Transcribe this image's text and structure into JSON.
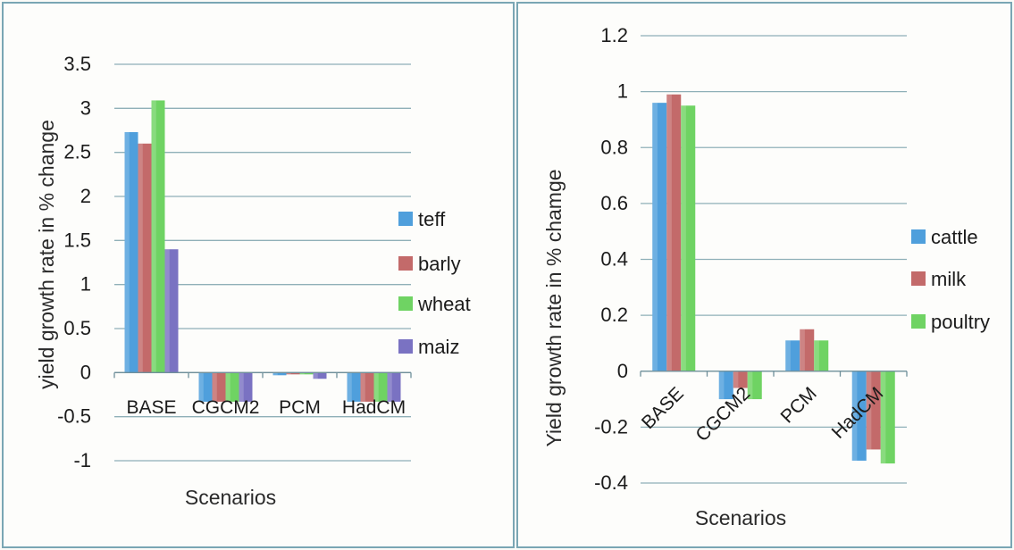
{
  "chart_data": [
    {
      "type": "bar",
      "categories": [
        "BASE",
        "CGCM2",
        "PCM",
        "HadCM"
      ],
      "series": [
        {
          "name": "teff",
          "color": "#4f9fdc",
          "values": [
            2.73,
            -0.33,
            -0.03,
            -0.33
          ]
        },
        {
          "name": "barly",
          "color": "#c36a6a",
          "values": [
            2.6,
            -0.33,
            -0.02,
            -0.33
          ]
        },
        {
          "name": "wheat",
          "color": "#6fd363",
          "values": [
            3.09,
            -0.33,
            -0.02,
            -0.33
          ]
        },
        {
          "name": "maiz",
          "color": "#7a72c2",
          "values": [
            1.4,
            -0.33,
            -0.07,
            -0.33
          ]
        }
      ],
      "title": "",
      "xlabel": "Scenarios",
      "ylabel": "yield  growth rate in  % change",
      "ylim": [
        -1,
        3.5
      ],
      "yticks": [
        "-1",
        "-0.5",
        "0",
        "0.5",
        "1",
        "1.5",
        "2",
        "2.5",
        "3",
        "3.5"
      ],
      "grid": true,
      "legend": "right"
    },
    {
      "type": "bar",
      "categories": [
        "BASE",
        "CGCM2",
        "PCM",
        "HadCM"
      ],
      "series": [
        {
          "name": "cattle",
          "color": "#4f9fdc",
          "values": [
            0.96,
            -0.1,
            0.11,
            -0.32
          ]
        },
        {
          "name": "milk",
          "color": "#c36a6a",
          "values": [
            0.99,
            -0.06,
            0.15,
            -0.28
          ]
        },
        {
          "name": "poultry",
          "color": "#6fd363",
          "values": [
            0.95,
            -0.1,
            0.11,
            -0.33
          ]
        }
      ],
      "title": "",
      "xlabel": "Scenarios",
      "ylabel": "Yield growth rate in % chamge",
      "ylim": [
        -0.4,
        1.2
      ],
      "yticks": [
        "-0.4",
        "-0.2",
        "0",
        "0.2",
        "0.4",
        "0.6",
        "0.8",
        "1",
        "1.2"
      ],
      "grid": true,
      "legend": "right"
    }
  ]
}
